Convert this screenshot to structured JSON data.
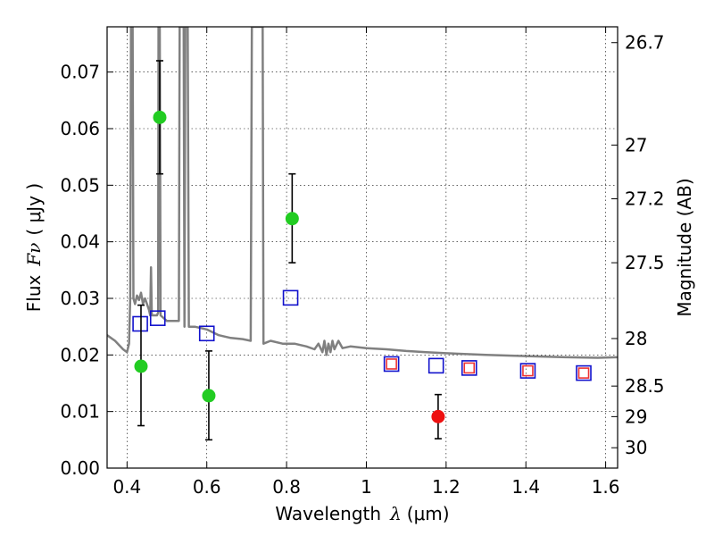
{
  "chart_data": {
    "type": "scatter",
    "xlabel": {
      "prefix": "Wavelength",
      "symbol": "λ",
      "unit": "(μm)"
    },
    "ylabel": {
      "prefix": "Flux",
      "symbol": "Fν",
      "unit": "( μJy )"
    },
    "y2label": "Magnitude (AB)",
    "xlim": [
      0.35,
      1.63
    ],
    "ylim": [
      0.0,
      0.078
    ],
    "grid": true,
    "x_ticks": [
      0.4,
      0.6,
      0.8,
      1.0,
      1.2,
      1.4,
      1.6
    ],
    "x_tick_labels": [
      "0.4",
      "0.6",
      "0.8",
      "1",
      "1.2",
      "1.4",
      "1.6"
    ],
    "y_ticks": [
      0.0,
      0.01,
      0.02,
      0.03,
      0.04,
      0.05,
      0.06,
      0.07
    ],
    "y_tick_labels": [
      "0.00",
      "0.01",
      "0.02",
      "0.03",
      "0.04",
      "0.05",
      "0.06",
      "0.07"
    ],
    "y2_ticks": [
      {
        "flux": 0.0752,
        "label": "26.7"
      },
      {
        "flux": 0.0571,
        "label": "27"
      },
      {
        "flux": 0.0476,
        "label": "27.2"
      },
      {
        "flux": 0.0363,
        "label": "27.5"
      },
      {
        "flux": 0.0229,
        "label": "28"
      },
      {
        "flux": 0.0145,
        "label": "28.5"
      },
      {
        "flux": 0.0091,
        "label": "29"
      },
      {
        "flux": 0.0036,
        "label": "30"
      }
    ],
    "series": [
      {
        "marker": "filled-circle",
        "color": "#22cc22",
        "points": [
          {
            "x": 0.435,
            "y": 0.018,
            "yerr_low": 0.0075,
            "yerr_high": 0.0288
          },
          {
            "x": 0.482,
            "y": 0.062,
            "yerr_low": 0.052,
            "yerr_high": 0.072
          },
          {
            "x": 0.605,
            "y": 0.0128,
            "yerr_low": 0.005,
            "yerr_high": 0.0207
          },
          {
            "x": 0.814,
            "y": 0.0441,
            "yerr_low": 0.0363,
            "yerr_high": 0.052
          }
        ]
      },
      {
        "marker": "filled-circle",
        "color": "#ee1111",
        "points": [
          {
            "x": 1.18,
            "y": 0.0091,
            "yerr_low": 0.0052,
            "yerr_high": 0.013
          }
        ]
      },
      {
        "marker": "open-square",
        "color": "#1111cc",
        "points": [
          {
            "x": 0.433,
            "y": 0.0255
          },
          {
            "x": 0.477,
            "y": 0.0265
          },
          {
            "x": 0.6,
            "y": 0.0238
          },
          {
            "x": 0.81,
            "y": 0.0301
          },
          {
            "x": 1.063,
            "y": 0.0184
          },
          {
            "x": 1.175,
            "y": 0.0181
          },
          {
            "x": 1.258,
            "y": 0.0177
          },
          {
            "x": 1.405,
            "y": 0.0172
          },
          {
            "x": 1.545,
            "y": 0.0168
          }
        ]
      },
      {
        "marker": "open-square",
        "color": "#ee3333",
        "points": [
          {
            "x": 1.063,
            "y": 0.0184
          },
          {
            "x": 1.258,
            "y": 0.0177
          },
          {
            "x": 1.405,
            "y": 0.0172
          },
          {
            "x": 1.545,
            "y": 0.0168
          }
        ]
      },
      {
        "marker": "line",
        "color": "#808080",
        "points": [
          [
            0.35,
            0.0235
          ],
          [
            0.37,
            0.0225
          ],
          [
            0.39,
            0.021
          ],
          [
            0.4,
            0.0205
          ],
          [
            0.405,
            0.022
          ],
          [
            0.408,
            0.03
          ],
          [
            0.41,
            0.078
          ],
          [
            0.414,
            0.078
          ],
          [
            0.416,
            0.03
          ],
          [
            0.42,
            0.029
          ],
          [
            0.425,
            0.0305
          ],
          [
            0.43,
            0.0297
          ],
          [
            0.435,
            0.031
          ],
          [
            0.44,
            0.029
          ],
          [
            0.445,
            0.03
          ],
          [
            0.45,
            0.029
          ],
          [
            0.455,
            0.028
          ],
          [
            0.458,
            0.027
          ],
          [
            0.46,
            0.0355
          ],
          [
            0.462,
            0.027
          ],
          [
            0.47,
            0.027
          ],
          [
            0.475,
            0.027
          ],
          [
            0.478,
            0.0275
          ],
          [
            0.479,
            0.078
          ],
          [
            0.482,
            0.078
          ],
          [
            0.484,
            0.027
          ],
          [
            0.5,
            0.026
          ],
          [
            0.52,
            0.026
          ],
          [
            0.53,
            0.026
          ],
          [
            0.532,
            0.078
          ],
          [
            0.542,
            0.078
          ],
          [
            0.544,
            0.025
          ],
          [
            0.546,
            0.078
          ],
          [
            0.552,
            0.078
          ],
          [
            0.555,
            0.025
          ],
          [
            0.57,
            0.025
          ],
          [
            0.6,
            0.0245
          ],
          [
            0.63,
            0.0235
          ],
          [
            0.66,
            0.023
          ],
          [
            0.69,
            0.0228
          ],
          [
            0.71,
            0.0225
          ],
          [
            0.713,
            0.078
          ],
          [
            0.74,
            0.078
          ],
          [
            0.742,
            0.022
          ],
          [
            0.76,
            0.0225
          ],
          [
            0.79,
            0.022
          ],
          [
            0.82,
            0.022
          ],
          [
            0.85,
            0.0215
          ],
          [
            0.87,
            0.021
          ],
          [
            0.88,
            0.022
          ],
          [
            0.89,
            0.0205
          ],
          [
            0.895,
            0.0225
          ],
          [
            0.9,
            0.02
          ],
          [
            0.905,
            0.022
          ],
          [
            0.91,
            0.0205
          ],
          [
            0.915,
            0.0225
          ],
          [
            0.92,
            0.021
          ],
          [
            0.93,
            0.0225
          ],
          [
            0.94,
            0.0212
          ],
          [
            0.96,
            0.0215
          ],
          [
            1.0,
            0.0212
          ],
          [
            1.05,
            0.021
          ],
          [
            1.1,
            0.0207
          ],
          [
            1.15,
            0.0205
          ],
          [
            1.2,
            0.0203
          ],
          [
            1.3,
            0.02
          ],
          [
            1.4,
            0.0198
          ],
          [
            1.5,
            0.0196
          ],
          [
            1.58,
            0.0195
          ],
          [
            1.63,
            0.0196
          ]
        ]
      }
    ]
  }
}
